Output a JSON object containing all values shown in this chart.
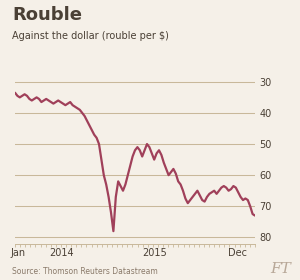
{
  "title": "Rouble",
  "subtitle": "Against the dollar (rouble per $)",
  "source": "Source: Thomson Reuters Datastream",
  "line_color": "#a0405a",
  "bg_color": "#f5f0e8",
  "grid_color": "#c8b89a",
  "text_color": "#4a4035",
  "ft_color": "#b8a898",
  "line_width": 1.6,
  "yticks": [
    30,
    40,
    50,
    60,
    70,
    80
  ],
  "ylim": [
    82,
    28
  ],
  "xlim": [
    0,
    3.0
  ],
  "xtick_positions": [
    0.04,
    0.58,
    1.75,
    2.78
  ],
  "xtick_labels": [
    "Jan",
    "2014",
    "2015",
    "Dec"
  ],
  "x_data": [
    0.0,
    0.03,
    0.06,
    0.09,
    0.12,
    0.15,
    0.18,
    0.21,
    0.24,
    0.27,
    0.3,
    0.33,
    0.36,
    0.39,
    0.42,
    0.45,
    0.48,
    0.51,
    0.54,
    0.57,
    0.6,
    0.63,
    0.66,
    0.69,
    0.72,
    0.75,
    0.78,
    0.81,
    0.84,
    0.87,
    0.9,
    0.93,
    0.96,
    0.99,
    1.02,
    1.05,
    1.08,
    1.11,
    1.14,
    1.17,
    1.2,
    1.23,
    1.26,
    1.29,
    1.32,
    1.35,
    1.38,
    1.41,
    1.44,
    1.47,
    1.5,
    1.53,
    1.56,
    1.59,
    1.62,
    1.65,
    1.68,
    1.71,
    1.74,
    1.77,
    1.8,
    1.83,
    1.86,
    1.89,
    1.92,
    1.95,
    1.98,
    2.01,
    2.04,
    2.07,
    2.1,
    2.13,
    2.16,
    2.19,
    2.22,
    2.25,
    2.28,
    2.31,
    2.34,
    2.37,
    2.4,
    2.43,
    2.46,
    2.49,
    2.52,
    2.55,
    2.58,
    2.61,
    2.64,
    2.67,
    2.7,
    2.73,
    2.76,
    2.79,
    2.82,
    2.85,
    2.88,
    2.91,
    2.94,
    2.97,
    3.0
  ],
  "y_data": [
    33.5,
    34.5,
    35.0,
    34.5,
    34.0,
    34.5,
    35.5,
    36.0,
    35.5,
    35.0,
    35.5,
    36.5,
    36.0,
    35.5,
    36.0,
    36.5,
    37.0,
    36.5,
    36.0,
    36.5,
    37.0,
    37.5,
    37.0,
    36.5,
    37.5,
    38.0,
    38.5,
    39.0,
    40.0,
    41.0,
    42.5,
    44.0,
    45.5,
    47.0,
    48.0,
    50.0,
    55.0,
    60.0,
    63.0,
    67.0,
    72.0,
    78.0,
    67.0,
    62.0,
    63.5,
    65.0,
    63.0,
    60.0,
    57.0,
    54.0,
    52.0,
    51.0,
    52.0,
    54.0,
    52.0,
    50.0,
    51.0,
    53.0,
    55.0,
    53.0,
    52.0,
    53.5,
    56.0,
    58.0,
    60.0,
    59.0,
    58.0,
    59.5,
    62.0,
    63.0,
    65.0,
    67.5,
    69.0,
    68.0,
    67.0,
    66.0,
    65.0,
    66.5,
    68.0,
    68.5,
    67.0,
    66.0,
    65.5,
    65.0,
    66.0,
    65.0,
    64.0,
    63.5,
    64.0,
    65.0,
    64.5,
    63.5,
    64.0,
    65.5,
    67.0,
    68.0,
    67.5,
    68.0,
    70.0,
    72.5,
    73.0
  ]
}
